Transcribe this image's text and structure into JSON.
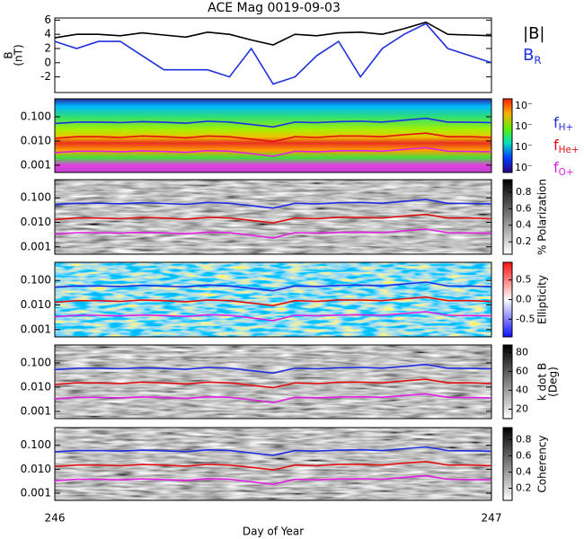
{
  "chart_data": [
    {
      "type": "line",
      "title": "ACE Mag 0019-09-03",
      "ylabel": [
        "B",
        "(nT)"
      ],
      "x": [
        246.0,
        246.05,
        246.1,
        246.15,
        246.2,
        246.25,
        246.3,
        246.35,
        246.4,
        246.45,
        246.5,
        246.55,
        246.6,
        246.65,
        246.7,
        246.75,
        246.8,
        246.85,
        246.9,
        246.95,
        247.0
      ],
      "xlim": [
        246,
        247
      ],
      "xticks": [
        246,
        247
      ],
      "xlabel": "Day of Year",
      "ylim": [
        -4.2,
        6.3
      ],
      "yticks": [
        -2,
        0,
        2,
        4,
        6
      ],
      "series": [
        {
          "name": "|B|",
          "color": "#000000",
          "values": [
            3.5,
            4,
            4,
            3.8,
            4.2,
            3.9,
            3.6,
            4.3,
            4,
            3.2,
            2.5,
            4,
            3.8,
            4.2,
            4.3,
            4,
            4.8,
            5.7,
            4,
            3.9,
            3.8
          ]
        },
        {
          "name": "B",
          "name_sub": "R",
          "color": "#1f2fe0",
          "values": [
            3,
            2,
            3,
            3,
            1,
            -1,
            -1,
            -1,
            -2,
            2,
            -3,
            -2,
            1,
            3,
            -2,
            2,
            4,
            5.5,
            2,
            1,
            0
          ]
        }
      ]
    },
    {
      "type": "heatmap",
      "ylim": [
        0.0005,
        0.55
      ],
      "log_y": true,
      "yticks": [
        {
          "value": 0.1,
          "label": "0.100"
        },
        {
          "value": 0.01,
          "label": "0.010"
        },
        {
          "value": 0.001,
          "label": "0.001"
        }
      ],
      "colorbar_labels": [
        "10⁻",
        "10⁻",
        "10⁻",
        "10⁻"
      ],
      "series": [
        {
          "name": "f",
          "name_sub": "H+",
          "color": "#1f2fe0",
          "values": [
            0.053,
            0.06,
            0.06,
            0.057,
            0.063,
            0.059,
            0.054,
            0.065,
            0.06,
            0.048,
            0.038,
            0.06,
            0.057,
            0.063,
            0.065,
            0.06,
            0.072,
            0.086,
            0.06,
            0.059,
            0.057
          ]
        },
        {
          "name": "f",
          "name_sub": "He+",
          "color": "#e01010",
          "values": [
            0.013,
            0.015,
            0.015,
            0.014,
            0.016,
            0.015,
            0.0135,
            0.016,
            0.015,
            0.012,
            0.0094,
            0.015,
            0.014,
            0.016,
            0.016,
            0.015,
            0.018,
            0.021,
            0.015,
            0.015,
            0.014
          ]
        },
        {
          "name": "f",
          "name_sub": "O+",
          "color": "#e020e0",
          "values": [
            0.0033,
            0.0038,
            0.0038,
            0.0036,
            0.0039,
            0.0037,
            0.0034,
            0.004,
            0.0038,
            0.003,
            0.0023,
            0.0038,
            0.0036,
            0.0039,
            0.004,
            0.0038,
            0.0045,
            0.0053,
            0.0038,
            0.0037,
            0.0036
          ]
        }
      ]
    },
    {
      "type": "heatmap",
      "ylim": [
        0.0005,
        0.55
      ],
      "log_y": true,
      "yticks": [
        {
          "value": 0.1,
          "label": "0.100"
        },
        {
          "value": 0.01,
          "label": "0.010"
        },
        {
          "value": 0.001,
          "label": "0.001"
        }
      ],
      "colorbar": {
        "label": [
          "% Polarization"
        ],
        "lim": [
          0.05,
          0.95
        ],
        "ticks": [
          0.8,
          0.6,
          0.4,
          0.2
        ]
      }
    },
    {
      "type": "heatmap",
      "ylim": [
        0.0005,
        0.55
      ],
      "log_y": true,
      "yticks": [
        {
          "value": 0.1,
          "label": "0.100"
        },
        {
          "value": 0.01,
          "label": "0.010"
        },
        {
          "value": 0.001,
          "label": "0.001"
        }
      ],
      "colorbar": {
        "label": [
          "Ellipticity"
        ],
        "lim": [
          -0.95,
          0.95
        ],
        "ticks": [
          0.5,
          {
            "value": 0,
            "label": "0.0"
          },
          -0.5
        ]
      }
    },
    {
      "type": "heatmap",
      "ylim": [
        0.0005,
        0.55
      ],
      "log_y": true,
      "yticks": [
        {
          "value": 0.1,
          "label": "0.100"
        },
        {
          "value": 0.01,
          "label": "0.010"
        },
        {
          "value": 0.001,
          "label": "0.001"
        }
      ],
      "colorbar": {
        "label": [
          "k dot B",
          "(Deg)"
        ],
        "lim": [
          10,
          88
        ],
        "ticks": [
          80,
          60,
          40,
          20
        ]
      }
    },
    {
      "type": "heatmap",
      "ylim": [
        0.0005,
        0.55
      ],
      "log_y": true,
      "yticks": [
        {
          "value": 0.1,
          "label": "0.100"
        },
        {
          "value": 0.01,
          "label": "0.010"
        },
        {
          "value": 0.001,
          "label": "0.001"
        }
      ],
      "colorbar": {
        "label": [
          "Coherency"
        ],
        "lim": [
          0.05,
          0.95
        ],
        "ticks": [
          0.8,
          0.6,
          0.4,
          0.2
        ]
      }
    }
  ]
}
